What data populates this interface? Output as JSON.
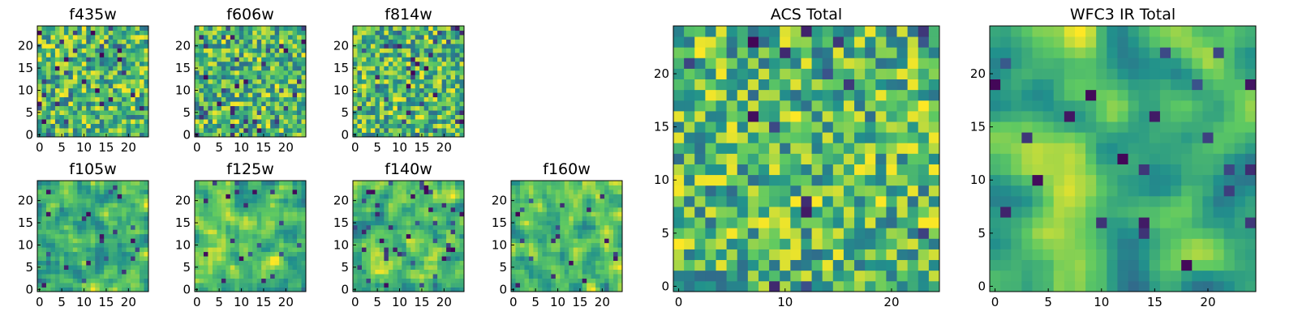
{
  "figure": "Multi-band pixel cutouts",
  "colormap": [
    "#440154",
    "#3b528b",
    "#21918c",
    "#5ec962",
    "#fde725"
  ],
  "chart_data": [
    {
      "type": "heatmap",
      "title": "f435w",
      "grid_size": 25,
      "x_ticks": [
        "0",
        "5",
        "10",
        "15",
        "20"
      ],
      "y_ticks": [
        "0",
        "5",
        "10",
        "15",
        "20"
      ],
      "seed": 11,
      "smooth": 0,
      "lowfrac": 0.06
    },
    {
      "type": "heatmap",
      "title": "f606w",
      "grid_size": 25,
      "x_ticks": [
        "0",
        "5",
        "10",
        "15",
        "20"
      ],
      "y_ticks": [
        "0",
        "5",
        "10",
        "15",
        "20"
      ],
      "seed": 23,
      "smooth": 0,
      "lowfrac": 0.05
    },
    {
      "type": "heatmap",
      "title": "f814w",
      "grid_size": 25,
      "x_ticks": [
        "0",
        "5",
        "10",
        "15",
        "20"
      ],
      "y_ticks": [
        "0",
        "5",
        "10",
        "15",
        "20"
      ],
      "seed": 37,
      "smooth": 0,
      "lowfrac": 0.05
    },
    {
      "type": "heatmap",
      "title": "f105w",
      "grid_size": 25,
      "x_ticks": [
        "0",
        "5",
        "10",
        "15",
        "20"
      ],
      "y_ticks": [
        "0",
        "5",
        "10",
        "15",
        "20"
      ],
      "seed": 41,
      "smooth": 1,
      "lowfrac": 0.04
    },
    {
      "type": "heatmap",
      "title": "f125w",
      "grid_size": 25,
      "x_ticks": [
        "0",
        "5",
        "10",
        "15",
        "20"
      ],
      "y_ticks": [
        "0",
        "5",
        "10",
        "15",
        "20"
      ],
      "seed": 53,
      "smooth": 1,
      "lowfrac": 0.04
    },
    {
      "type": "heatmap",
      "title": "f140w",
      "grid_size": 25,
      "x_ticks": [
        "0",
        "5",
        "10",
        "15",
        "20"
      ],
      "y_ticks": [
        "0",
        "5",
        "10",
        "15",
        "20"
      ],
      "seed": 67,
      "smooth": 1,
      "lowfrac": 0.05
    },
    {
      "type": "heatmap",
      "title": "f160w",
      "grid_size": 25,
      "x_ticks": [
        "0",
        "5",
        "10",
        "15",
        "20"
      ],
      "y_ticks": [
        "0",
        "5",
        "10",
        "15",
        "20"
      ],
      "seed": 79,
      "smooth": 1,
      "lowfrac": 0.04
    },
    {
      "type": "heatmap",
      "title": "ACS Total",
      "grid_size": 25,
      "x_ticks": [
        "0",
        "10",
        "20"
      ],
      "y_ticks": [
        "0",
        "5",
        "10",
        "15",
        "20"
      ],
      "seed": 97,
      "smooth": 0,
      "lowfrac": 0.03
    },
    {
      "type": "heatmap",
      "title": "WFC3 IR Total",
      "grid_size": 25,
      "x_ticks": [
        "0",
        "5",
        "10",
        "15",
        "20"
      ],
      "y_ticks": [
        "0",
        "5",
        "10",
        "15",
        "20"
      ],
      "seed": 101,
      "smooth": 2,
      "lowfrac": 0.04
    }
  ]
}
